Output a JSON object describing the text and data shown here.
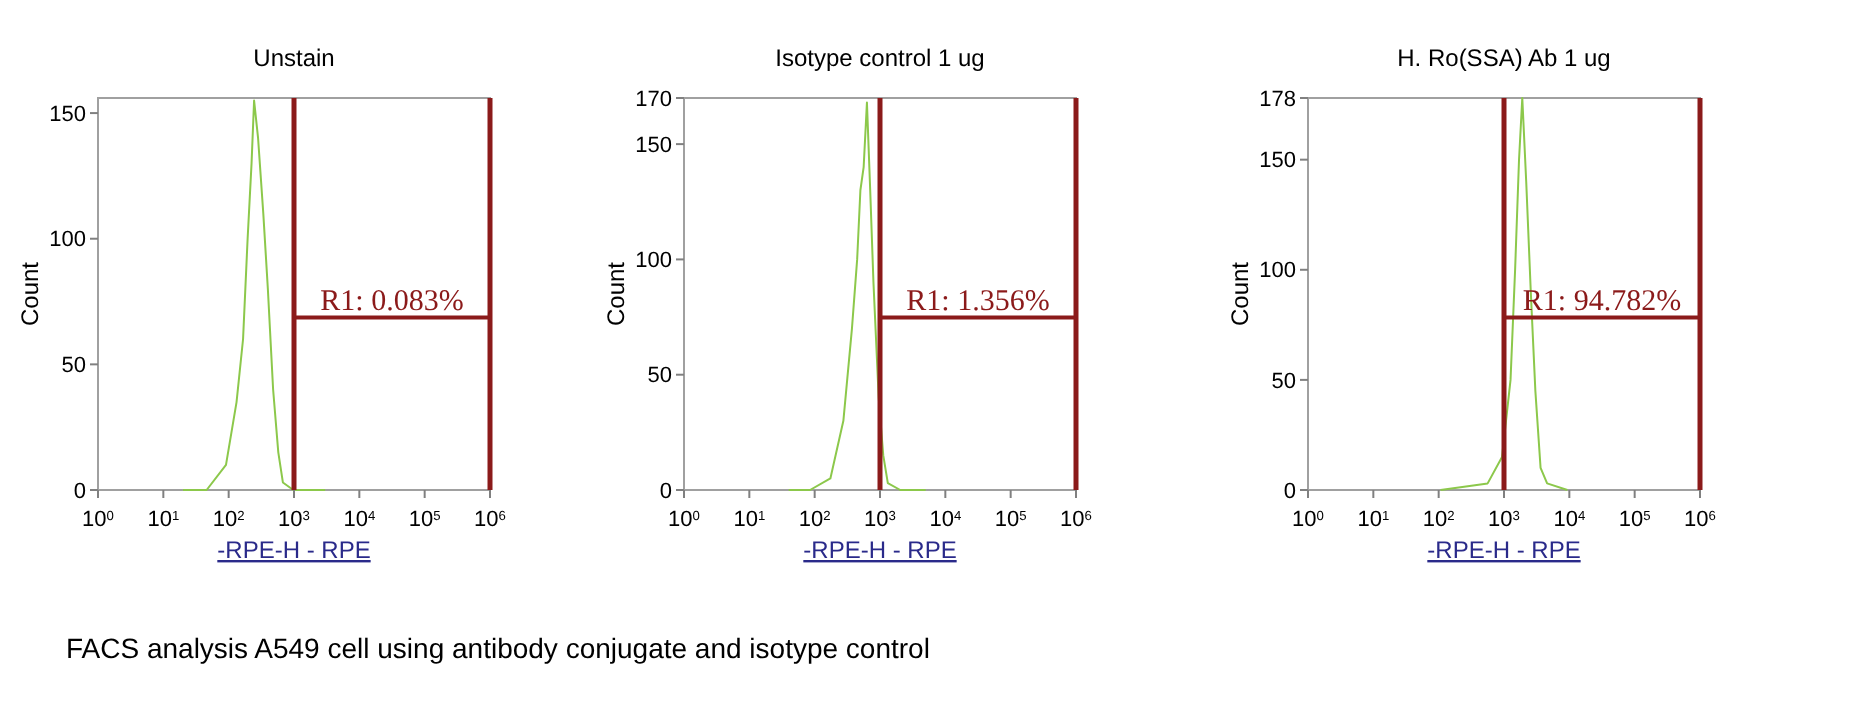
{
  "chart_data": [
    {
      "type": "line",
      "title": "Unstain",
      "xlabel": "-RPE-H - RPE",
      "ylabel": "Count",
      "log": "x",
      "grid": false,
      "marker": "none",
      "line_style": "solid",
      "xlim": [
        1,
        1000000
      ],
      "xticks": [
        {
          "value": 1,
          "label": "10$^{0}$"
        },
        {
          "value": 10,
          "label": "10$^{1}$"
        },
        {
          "value": 100,
          "label": "10$^{2}$"
        },
        {
          "value": 1000,
          "label": "10$^{3}$"
        },
        {
          "value": 10000,
          "label": "10$^{4}$"
        },
        {
          "value": 100000,
          "label": "10$^{5}$"
        },
        {
          "value": 1000000,
          "label": "10$^{6}$"
        }
      ],
      "ylim": [
        0,
        156
      ],
      "yticks": [
        0,
        50,
        100,
        150
      ],
      "series": [
        {
          "color": "#8cc84b",
          "x": [
            20,
            46,
            91,
            132,
            166,
            195,
            224,
            245,
            282,
            339,
            398,
            479,
            575,
            676,
            977,
            3000
          ],
          "values": [
            0,
            0,
            10,
            35,
            60,
            100,
            130,
            155,
            140,
            110,
            80,
            40,
            15,
            3,
            0,
            0
          ]
        }
      ],
      "ref_lines": [
        {
          "axis": "x",
          "value": 1000,
          "color": "#8b1a1a"
        },
        {
          "axis": "x",
          "value": 1000000,
          "color": "#8b1a1a"
        }
      ],
      "annotations": [
        "R1: 0.083%",
        "FACS analysis A549 cell using antibody conjugate and isotype control"
      ]
    },
    {
      "type": "line",
      "title": "Isotype control 1 ug",
      "xlabel": "-RPE-H - RPE",
      "ylabel": "Count",
      "log": "x",
      "grid": false,
      "marker": "none",
      "line_style": "solid",
      "xlim": [
        1,
        1000000
      ],
      "xticks": [
        {
          "value": 1,
          "label": "10$^{0}$"
        },
        {
          "value": 10,
          "label": "10$^{1}$"
        },
        {
          "value": 100,
          "label": "10$^{2}$"
        },
        {
          "value": 1000,
          "label": "10$^{3}$"
        },
        {
          "value": 10000,
          "label": "10$^{4}$"
        },
        {
          "value": 100000,
          "label": "10$^{5}$"
        },
        {
          "value": 1000000,
          "label": "10$^{6}$"
        }
      ],
      "ylim": [
        0,
        170
      ],
      "yticks": [
        0,
        50,
        100,
        150,
        170
      ],
      "series": [
        {
          "color": "#8cc84b",
          "x": [
            40,
            85,
            174,
            275,
            372,
            447,
            501,
            562,
            631,
            708,
            794,
            955,
            1122,
            1318,
            2042,
            5000
          ],
          "values": [
            0,
            0,
            5,
            30,
            70,
            100,
            130,
            140,
            168,
            130,
            90,
            40,
            15,
            3,
            0,
            0
          ]
        }
      ],
      "ref_lines": [
        {
          "axis": "x",
          "value": 1000,
          "color": "#8b1a1a"
        },
        {
          "axis": "x",
          "value": 1000000,
          "color": "#8b1a1a"
        }
      ],
      "annotations": [
        "R1: 1.356%"
      ]
    },
    {
      "type": "line",
      "title": "H. Ro(SSA) Ab 1 ug",
      "xlabel": "-RPE-H - RPE",
      "ylabel": "Count",
      "log": "x",
      "grid": false,
      "marker": "none",
      "line_style": "solid",
      "xlim": [
        1,
        1000000
      ],
      "xticks": [
        {
          "value": 1,
          "label": "10$^{0}$"
        },
        {
          "value": 10,
          "label": "10$^{1}$"
        },
        {
          "value": 100,
          "label": "10$^{2}$"
        },
        {
          "value": 1000,
          "label": "10$^{3}$"
        },
        {
          "value": 10000,
          "label": "10$^{4}$"
        },
        {
          "value": 100000,
          "label": "10$^{5}$"
        },
        {
          "value": 1000000,
          "label": "10$^{6}$"
        }
      ],
      "ylim": [
        0,
        178
      ],
      "yticks": [
        0,
        50,
        100,
        150,
        178
      ],
      "series": [
        {
          "color": "#8cc84b",
          "x": [
            107,
            562,
            933,
            1259,
            1479,
            1698,
            1905,
            2188,
            2570,
            3020,
            3631,
            4571,
            9333
          ],
          "values": [
            0,
            3,
            15,
            50,
            100,
            150,
            178,
            140,
            90,
            45,
            10,
            3,
            0
          ]
        }
      ],
      "ref_lines": [
        {
          "axis": "x",
          "value": 1000,
          "color": "#8b1a1a"
        },
        {
          "axis": "x",
          "value": 1000000,
          "color": "#8b1a1a"
        }
      ],
      "annotations": [
        "R1: 94.782%"
      ]
    }
  ]
}
